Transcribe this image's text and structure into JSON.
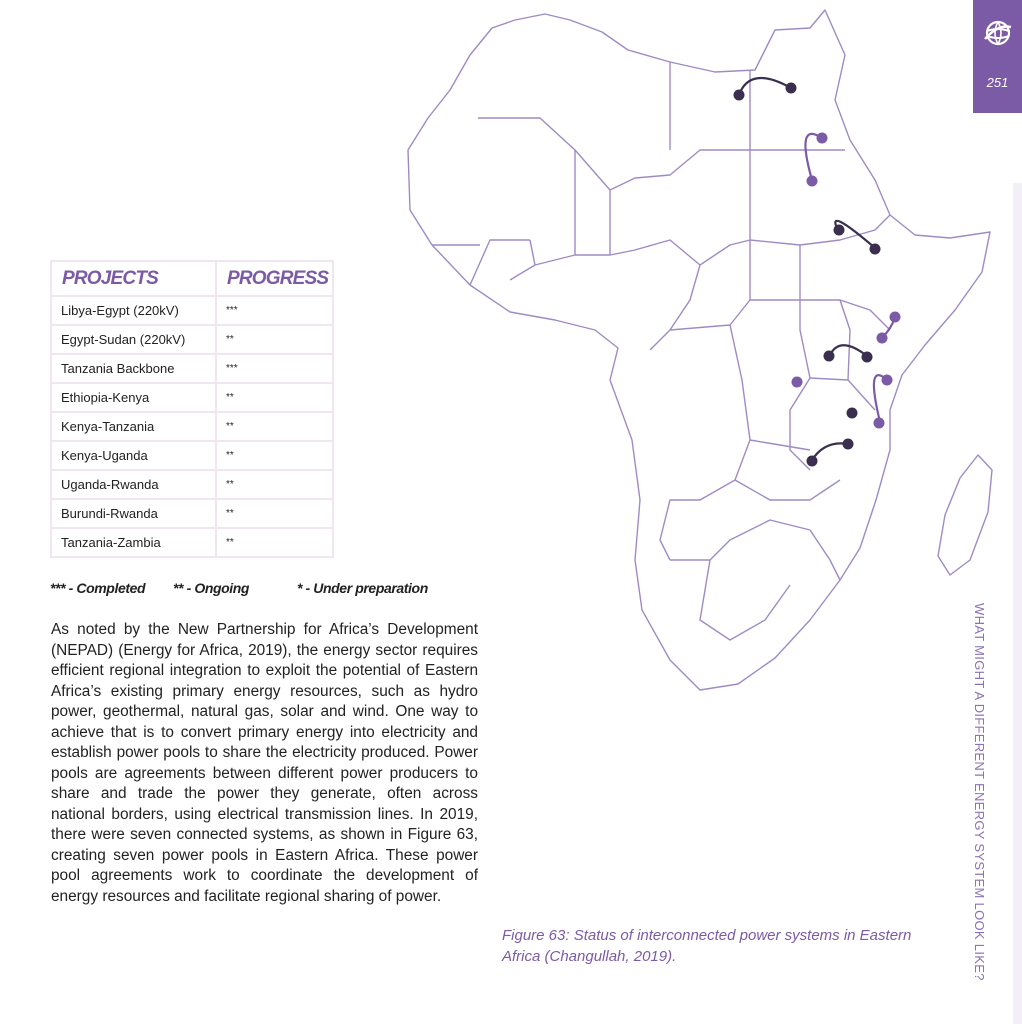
{
  "page": {
    "number": "251",
    "side_title": "WHAT MIGHT A DIFFERENT ENERGY SYSTEM LOOK LIKE?"
  },
  "table": {
    "headers": [
      "PROJECTS",
      "PROGRESS"
    ],
    "rows": [
      {
        "project": "Libya-Egypt (220kV)",
        "progress": "***"
      },
      {
        "project": "Egypt-Sudan (220kV)",
        "progress": "**"
      },
      {
        "project": "Tanzania Backbone",
        "progress": "***"
      },
      {
        "project": "Ethiopia-Kenya",
        "progress": "**"
      },
      {
        "project": "Kenya-Tanzania",
        "progress": "**"
      },
      {
        "project": "Kenya-Uganda",
        "progress": "**"
      },
      {
        "project": "Uganda-Rwanda",
        "progress": "**"
      },
      {
        "project": "Burundi-Rwanda",
        "progress": "**"
      },
      {
        "project": "Tanzania-Zambia",
        "progress": "**"
      }
    ]
  },
  "legend": {
    "completed": "*** - Completed",
    "ongoing": "** - Ongoing",
    "preparation": "* - Under preparation"
  },
  "body_text": "As noted by the New Partnership for Africa’s Development (NEPAD) (Energy for Africa, 2019), the energy sector requires efficient regional integration to exploit the potential of Eastern Africa’s existing primary energy resources, such as hydro power, geothermal, natural gas, solar and wind. One way to achieve that is to convert primary energy into electricity and establish power pools to share the electricity produced.  Power pools are agreements between different power producers to share and trade the power they generate, often across national borders, using electrical transmission lines.  In 2019, there were seven connected systems, as shown in Figure 63, creating seven power pools in Eastern Africa.  These power pool agreements work to coordinate the development of energy resources and facilitate regional sharing of power.",
  "caption": "Figure 63: Status of interconnected power systems in Eastern Africa (Changullah, 2019).",
  "colors": {
    "accent": "#7b5aa6",
    "map_outline": "#9f8bc4",
    "dot_dark": "#3a2f4f",
    "dot_light": "#7b5aa6"
  },
  "icons": {
    "corner_logo": "globe-icon"
  }
}
